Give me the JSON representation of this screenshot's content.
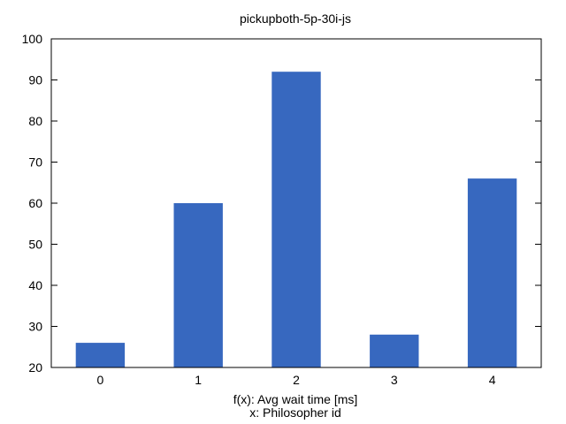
{
  "chart_data": {
    "type": "bar",
    "title": "pickupboth-5p-30i-js",
    "categories": [
      "0",
      "1",
      "2",
      "3",
      "4"
    ],
    "values": [
      26,
      60,
      92,
      28,
      66
    ],
    "ylim": [
      20,
      100
    ],
    "yticks": [
      "20",
      "30",
      "40",
      "50",
      "60",
      "70",
      "80",
      "90",
      "100"
    ],
    "ylabel": "",
    "xlabel_lines": [
      "f(x): Avg wait time [ms]",
      "x: Philosopher id"
    ],
    "bar_color": "#3768bf",
    "grid": false,
    "legend": "none"
  }
}
